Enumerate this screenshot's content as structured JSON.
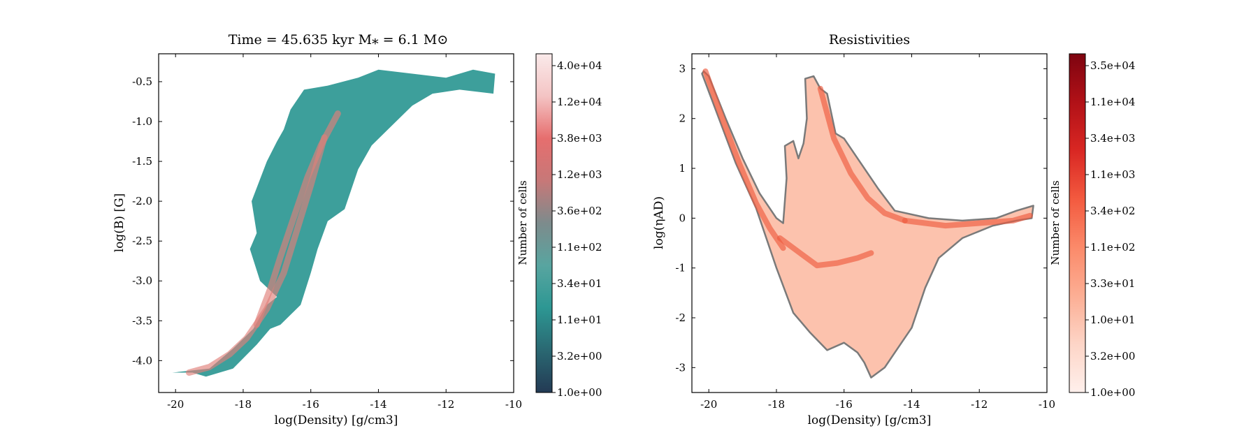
{
  "chart_data": [
    {
      "type": "heatmap",
      "title": "Time = 45.635 kyr    M⁎ = 6.1 M⊙",
      "xlabel": "log(Density) [g/cm3]",
      "ylabel": "log(B) [G]",
      "xlim": [
        -20.5,
        -10
      ],
      "ylim": [
        -4.4,
        -0.15
      ],
      "x_ticks": [
        -20,
        -18,
        -16,
        -14,
        -12,
        -10
      ],
      "y_ticks": [
        -4.0,
        -3.5,
        -3.0,
        -2.5,
        -2.0,
        -1.5,
        -1.0,
        -0.5
      ],
      "y_tick_labels": [
        "-4.0",
        "-3.5",
        "-3.0",
        "-2.5",
        "-2.0",
        "-1.5",
        "-1.0",
        "-0.5"
      ],
      "colormap": [
        "#233a54",
        "#2a6872",
        "#2d9793",
        "#58a5a0",
        "#7d8b8c",
        "#c77878",
        "#e66e6e",
        "#f4c4c4",
        "#faeaea"
      ],
      "colorbar": {
        "label": "Number of cells",
        "tick_labels": [
          "1.0e+00",
          "3.2e+00",
          "1.1e+01",
          "3.4e+01",
          "1.1e+02",
          "3.6e+02",
          "1.2e+03",
          "3.8e+03",
          "1.2e+04",
          "4.0e+04"
        ],
        "scale": "log",
        "range": [
          1.0,
          40000
        ]
      },
      "region_outline": [
        [
          -20.1,
          -4.15
        ],
        [
          -19.5,
          -4.15
        ],
        [
          -19.1,
          -4.2
        ],
        [
          -18.3,
          -4.1
        ],
        [
          -17.6,
          -3.8
        ],
        [
          -17.2,
          -3.6
        ],
        [
          -16.9,
          -3.55
        ],
        [
          -16.3,
          -3.3
        ],
        [
          -16.0,
          -2.9
        ],
        [
          -15.8,
          -2.6
        ],
        [
          -15.5,
          -2.25
        ],
        [
          -15.0,
          -2.1
        ],
        [
          -14.6,
          -1.6
        ],
        [
          -14.2,
          -1.3
        ],
        [
          -13.6,
          -1.05
        ],
        [
          -13.0,
          -0.8
        ],
        [
          -12.4,
          -0.65
        ],
        [
          -11.6,
          -0.6
        ],
        [
          -10.6,
          -0.65
        ],
        [
          -10.55,
          -0.4
        ],
        [
          -11.2,
          -0.35
        ],
        [
          -12.0,
          -0.45
        ],
        [
          -13.0,
          -0.4
        ],
        [
          -14.0,
          -0.35
        ],
        [
          -14.6,
          -0.45
        ],
        [
          -15.5,
          -0.55
        ],
        [
          -16.2,
          -0.6
        ],
        [
          -16.6,
          -0.85
        ],
        [
          -16.8,
          -1.1
        ],
        [
          -17.0,
          -1.25
        ],
        [
          -17.3,
          -1.5
        ],
        [
          -17.75,
          -2.0
        ],
        [
          -17.6,
          -2.4
        ],
        [
          -17.8,
          -2.6
        ],
        [
          -17.5,
          -3.0
        ],
        [
          -17.0,
          -3.2
        ],
        [
          -17.3,
          -3.3
        ],
        [
          -17.7,
          -3.6
        ],
        [
          -18.3,
          -3.85
        ],
        [
          -19.0,
          -4.1
        ]
      ],
      "ridges": [
        {
          "x": [
            -19.6,
            -19.0,
            -18.4,
            -17.9,
            -17.3,
            -16.8,
            -16.4,
            -16.0,
            -15.6
          ],
          "y": [
            -4.15,
            -4.08,
            -3.92,
            -3.72,
            -3.35,
            -2.9,
            -2.35,
            -1.8,
            -1.2
          ]
        },
        {
          "x": [
            -17.6,
            -17.2,
            -16.9,
            -16.5,
            -16.1,
            -15.7,
            -15.2
          ],
          "y": [
            -3.55,
            -3.1,
            -2.7,
            -2.2,
            -1.7,
            -1.3,
            -0.9
          ]
        }
      ]
    },
    {
      "type": "heatmap",
      "title": "Resistivities",
      "xlabel": "log(Density) [g/cm3]",
      "ylabel": "log(ηAD)",
      "xlim": [
        -20.5,
        -10
      ],
      "ylim": [
        -3.5,
        3.3
      ],
      "x_ticks": [
        -20,
        -18,
        -16,
        -14,
        -12,
        -10
      ],
      "y_ticks": [
        -3,
        -2,
        -1,
        0,
        1,
        2,
        3
      ],
      "y_tick_labels": [
        "-3",
        "-2",
        "-1",
        "0",
        "1",
        "2",
        "3"
      ],
      "colormap": [
        "#fff0ec",
        "#fdd5c7",
        "#fcae94",
        "#fb8a6a",
        "#f35a3f",
        "#d92723",
        "#b11117",
        "#7e0410"
      ],
      "colorbar": {
        "label": "Number of cells",
        "tick_labels": [
          "1.0e+00",
          "3.2e+00",
          "1.0e+01",
          "3.3e+01",
          "1.1e+02",
          "3.4e+02",
          "1.1e+03",
          "3.4e+03",
          "1.1e+04",
          "3.5e+04"
        ],
        "scale": "log",
        "range": [
          1.0,
          35000
        ]
      },
      "region_outline": [
        [
          -20.15,
          2.95
        ],
        [
          -20.0,
          2.85
        ],
        [
          -19.5,
          2.0
        ],
        [
          -19.0,
          1.2
        ],
        [
          -18.5,
          0.5
        ],
        [
          -18.0,
          0.0
        ],
        [
          -17.8,
          -0.1
        ],
        [
          -17.7,
          0.8
        ],
        [
          -17.75,
          1.45
        ],
        [
          -17.5,
          1.55
        ],
        [
          -17.35,
          1.2
        ],
        [
          -17.2,
          1.5
        ],
        [
          -17.1,
          2.0
        ],
        [
          -17.15,
          2.8
        ],
        [
          -16.9,
          2.85
        ],
        [
          -16.7,
          2.6
        ],
        [
          -16.5,
          2.5
        ],
        [
          -16.25,
          1.7
        ],
        [
          -16.0,
          1.6
        ],
        [
          -15.5,
          1.1
        ],
        [
          -15.0,
          0.6
        ],
        [
          -14.5,
          0.15
        ],
        [
          -13.5,
          0.0
        ],
        [
          -12.5,
          -0.05
        ],
        [
          -11.5,
          0.0
        ],
        [
          -10.9,
          0.15
        ],
        [
          -10.4,
          0.25
        ],
        [
          -10.45,
          0.0
        ],
        [
          -10.9,
          -0.05
        ],
        [
          -11.6,
          -0.15
        ],
        [
          -12.5,
          -0.4
        ],
        [
          -13.2,
          -0.8
        ],
        [
          -13.6,
          -1.4
        ],
        [
          -14.0,
          -2.2
        ],
        [
          -14.4,
          -2.6
        ],
        [
          -14.8,
          -3.0
        ],
        [
          -15.2,
          -3.2
        ],
        [
          -15.4,
          -2.9
        ],
        [
          -15.6,
          -2.7
        ],
        [
          -16.0,
          -2.5
        ],
        [
          -16.5,
          -2.65
        ],
        [
          -17.0,
          -2.3
        ],
        [
          -17.5,
          -1.9
        ],
        [
          -18.0,
          -1.0
        ],
        [
          -18.6,
          0.2
        ],
        [
          -19.2,
          1.1
        ],
        [
          -19.7,
          2.0
        ],
        [
          -20.2,
          2.9
        ]
      ],
      "ridges": [
        {
          "x": [
            -20.1,
            -19.6,
            -19.1,
            -18.6,
            -18.2,
            -17.8
          ],
          "y": [
            2.95,
            2.0,
            1.1,
            0.3,
            -0.2,
            -0.6
          ]
        },
        {
          "x": [
            -17.9,
            -17.3,
            -16.8,
            -16.2,
            -15.6,
            -15.2
          ],
          "y": [
            -0.4,
            -0.7,
            -0.95,
            -0.9,
            -0.8,
            -0.7
          ]
        },
        {
          "x": [
            -16.7,
            -16.3,
            -15.8,
            -15.3,
            -14.8,
            -14.2
          ],
          "y": [
            2.6,
            1.6,
            0.9,
            0.4,
            0.1,
            -0.05
          ]
        },
        {
          "x": [
            -14.2,
            -13.0,
            -12.0,
            -11.0,
            -10.5
          ],
          "y": [
            -0.05,
            -0.15,
            -0.1,
            -0.05,
            0.05
          ]
        }
      ]
    }
  ]
}
